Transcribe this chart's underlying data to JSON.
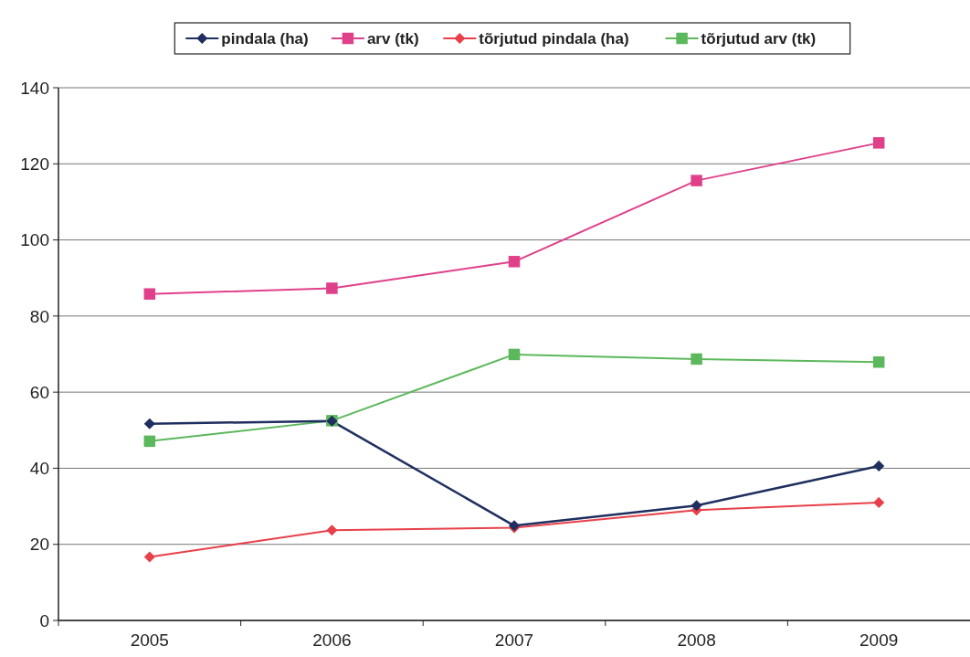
{
  "chart_data": {
    "type": "line",
    "categories": [
      "2005",
      "2006",
      "2007",
      "2008",
      "2009"
    ],
    "series": [
      {
        "name": "pindala (ha)",
        "color": "#1f2f5f",
        "marker": "diamond",
        "values": [
          51.7,
          52.4,
          24.9,
          30.2,
          40.6
        ]
      },
      {
        "name": "arv (tk)",
        "color": "#e0408a",
        "marker": "square",
        "values": [
          85.8,
          87.3,
          94.3,
          115.6,
          125.5
        ]
      },
      {
        "name": "tõrjutud pindala (ha)",
        "color": "#e8404a",
        "marker": "diamond",
        "values": [
          16.7,
          23.7,
          24.4,
          29,
          31
        ]
      },
      {
        "name": "tõrjutud arv (tk)",
        "color": "#5cb85c",
        "marker": "square",
        "values": [
          47.1,
          52.5,
          69.9,
          68.7,
          67.9
        ]
      }
    ],
    "ylim": [
      0,
      140
    ],
    "yticks": [
      0,
      20,
      40,
      60,
      80,
      100,
      120,
      140
    ],
    "grid": "y",
    "legend": "top",
    "line_style": "solid"
  }
}
